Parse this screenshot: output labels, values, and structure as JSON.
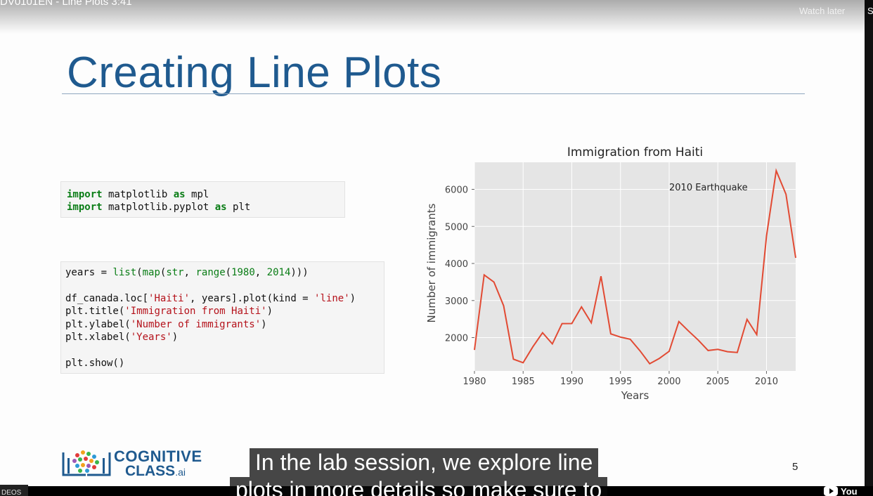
{
  "video": {
    "title": "DV0101EN - Line Plots 3:41",
    "watch_later": "Watch later",
    "share_stub": "S",
    "videos_label": "DEOS",
    "youtube_label": "You"
  },
  "slide": {
    "title": "Creating Line Plots",
    "page_number": "5",
    "logo": {
      "line1": "COGNITIVE",
      "line2": "CLASS",
      "suffix": ".ai"
    }
  },
  "code": {
    "cell1": [
      [
        {
          "t": "import",
          "c": "kw"
        },
        {
          "t": " matplotlib ",
          "c": ""
        },
        {
          "t": "as",
          "c": "kw"
        },
        {
          "t": " mpl",
          "c": ""
        }
      ],
      [
        {
          "t": "import",
          "c": "kw"
        },
        {
          "t": " matplotlib.pyplot ",
          "c": ""
        },
        {
          "t": "as",
          "c": "kw"
        },
        {
          "t": " plt",
          "c": ""
        }
      ]
    ],
    "cell2": [
      [
        {
          "t": "years = ",
          "c": ""
        },
        {
          "t": "list",
          "c": "bi"
        },
        {
          "t": "(",
          "c": ""
        },
        {
          "t": "map",
          "c": "bi"
        },
        {
          "t": "(",
          "c": ""
        },
        {
          "t": "str",
          "c": "bi"
        },
        {
          "t": ", ",
          "c": ""
        },
        {
          "t": "range",
          "c": "bi"
        },
        {
          "t": "(",
          "c": ""
        },
        {
          "t": "1980",
          "c": "nm"
        },
        {
          "t": ", ",
          "c": ""
        },
        {
          "t": "2014",
          "c": "nm"
        },
        {
          "t": ")))",
          "c": ""
        }
      ],
      [],
      [
        {
          "t": "df_canada.loc[",
          "c": ""
        },
        {
          "t": "'Haiti'",
          "c": "st"
        },
        {
          "t": ", years].plot(kind = ",
          "c": ""
        },
        {
          "t": "'line'",
          "c": "st"
        },
        {
          "t": ")",
          "c": ""
        }
      ],
      [
        {
          "t": "plt.title(",
          "c": ""
        },
        {
          "t": "'Immigration from Haiti'",
          "c": "st"
        },
        {
          "t": ")",
          "c": ""
        }
      ],
      [
        {
          "t": "plt.ylabel(",
          "c": ""
        },
        {
          "t": "'Number of immigrants'",
          "c": "st"
        },
        {
          "t": ")",
          "c": ""
        }
      ],
      [
        {
          "t": "plt.xlabel(",
          "c": ""
        },
        {
          "t": "'Years'",
          "c": "st"
        },
        {
          "t": ")",
          "c": ""
        }
      ],
      [],
      [
        {
          "t": "plt.show()",
          "c": ""
        }
      ]
    ]
  },
  "chart_data": {
    "type": "line",
    "title": "Immigration from Haiti",
    "xlabel": "Years",
    "ylabel": "Number of immigrants",
    "x": [
      1980,
      1981,
      1982,
      1983,
      1984,
      1985,
      1986,
      1987,
      1988,
      1989,
      1990,
      1991,
      1992,
      1993,
      1994,
      1995,
      1996,
      1997,
      1998,
      1999,
      2000,
      2001,
      2002,
      2003,
      2004,
      2005,
      2006,
      2007,
      2008,
      2009,
      2010,
      2011,
      2012,
      2013
    ],
    "series": [
      {
        "values": [
          1666,
          3692,
          3498,
          2860,
          1418,
          1321,
          1753,
          2132,
          1829,
          2377,
          2379,
          2829,
          2399,
          3655,
          2100,
          2014,
          1955,
          1645,
          1295,
          1439,
          1631,
          2433,
          2174,
          1930,
          1652,
          1682,
          1619,
          1598,
          2491,
          2080,
          4744,
          6503,
          5868,
          4152
        ],
        "color": "#e24a33"
      }
    ],
    "xlim": [
      1980,
      2013
    ],
    "ylim": [
      1100,
      6730
    ],
    "xticks": [
      1980,
      1985,
      1990,
      1995,
      2000,
      2005,
      2010
    ],
    "yticks": [
      2000,
      3000,
      4000,
      5000,
      6000
    ],
    "annotation": "2010 Earthquake",
    "grid": true,
    "background": "#e5e5e5"
  },
  "captions": {
    "line1": "In the lab session, we explore line",
    "line2": "plots in more details so make sure to"
  }
}
